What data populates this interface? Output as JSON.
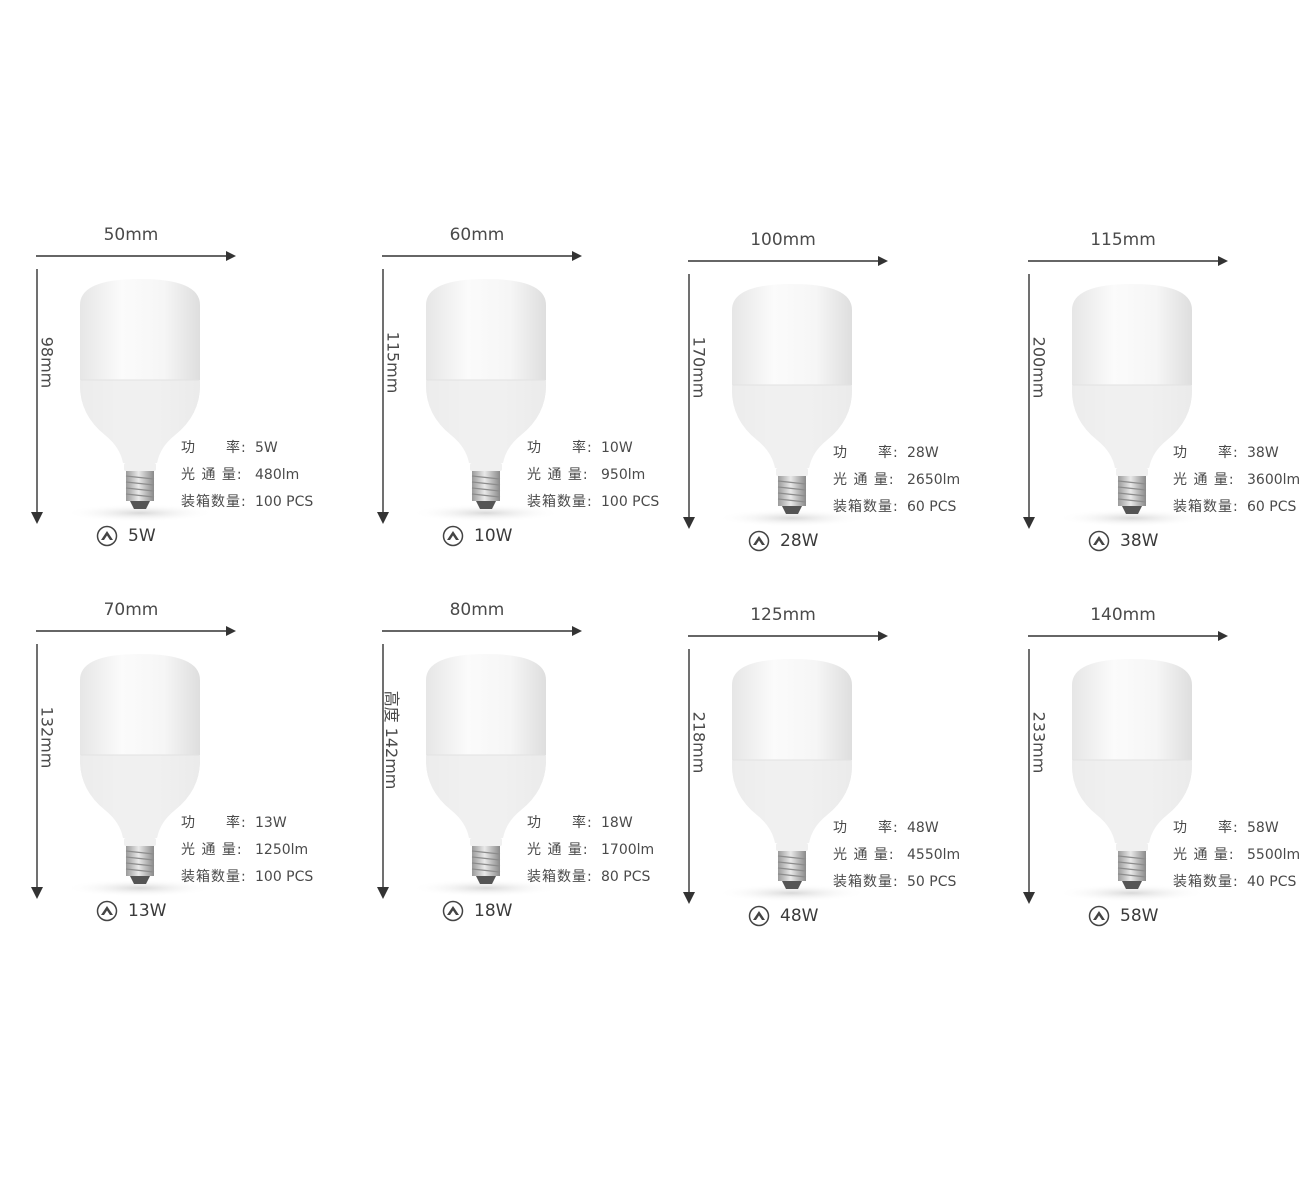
{
  "colors": {
    "text": "#4a4a4a",
    "arrow": "#333333",
    "bulb_top": "#f7f7f7",
    "bulb_body": "#f1f1f1",
    "base_metal": "#c8c8c8"
  },
  "icons": {
    "brand": "brand-logo-icon",
    "width_arrow": "arrow-right-icon",
    "height_arrow": "arrow-down-icon"
  },
  "products": [
    {
      "width": "50mm",
      "height": "98mm",
      "watt": "5W",
      "specs": [
        {
          "key": "功　　率:",
          "val": "5W"
        },
        {
          "key": "光 通 量:",
          "val": "480lm"
        },
        {
          "key": "装箱数量:",
          "val": "100 PCS"
        }
      ]
    },
    {
      "width": "60mm",
      "height": "115mm",
      "watt": "10W",
      "specs": [
        {
          "key": "功　　率:",
          "val": "10W"
        },
        {
          "key": "光 通 量:",
          "val": "950lm"
        },
        {
          "key": "装箱数量:",
          "val": "100 PCS"
        }
      ]
    },
    {
      "width": "100mm",
      "height": "170mm",
      "watt": "28W",
      "specs": [
        {
          "key": "功　　率:",
          "val": "28W"
        },
        {
          "key": "光 通 量:",
          "val": "2650lm"
        },
        {
          "key": "装箱数量:",
          "val": "60 PCS"
        }
      ]
    },
    {
      "width": "115mm",
      "height": "200mm",
      "watt": "38W",
      "specs": [
        {
          "key": "功　　率:",
          "val": "38W"
        },
        {
          "key": "光 通 量:",
          "val": "3600lm"
        },
        {
          "key": "装箱数量:",
          "val": "60 PCS"
        }
      ]
    },
    {
      "width": "70mm",
      "height": "132mm",
      "watt": "13W",
      "specs": [
        {
          "key": "功　　率:",
          "val": "13W"
        },
        {
          "key": "光 通 量:",
          "val": "1250lm"
        },
        {
          "key": "装箱数量:",
          "val": "100 PCS"
        }
      ]
    },
    {
      "width": "80mm",
      "height": "高度 142mm",
      "watt": "18W",
      "specs": [
        {
          "key": "功　　率:",
          "val": "18W"
        },
        {
          "key": "光 通 量:",
          "val": "1700lm"
        },
        {
          "key": "装箱数量:",
          "val": "80 PCS"
        }
      ]
    },
    {
      "width": "125mm",
      "height": "218mm",
      "watt": "48W",
      "specs": [
        {
          "key": "功　　率:",
          "val": "48W"
        },
        {
          "key": "光 通 量:",
          "val": "4550lm"
        },
        {
          "key": "装箱数量:",
          "val": "50 PCS"
        }
      ]
    },
    {
      "width": "140mm",
      "height": "233mm",
      "watt": "58W",
      "specs": [
        {
          "key": "功　　率:",
          "val": "58W"
        },
        {
          "key": "光 通 量:",
          "val": "5500lm"
        },
        {
          "key": "装箱数量:",
          "val": "40 PCS"
        }
      ]
    }
  ]
}
